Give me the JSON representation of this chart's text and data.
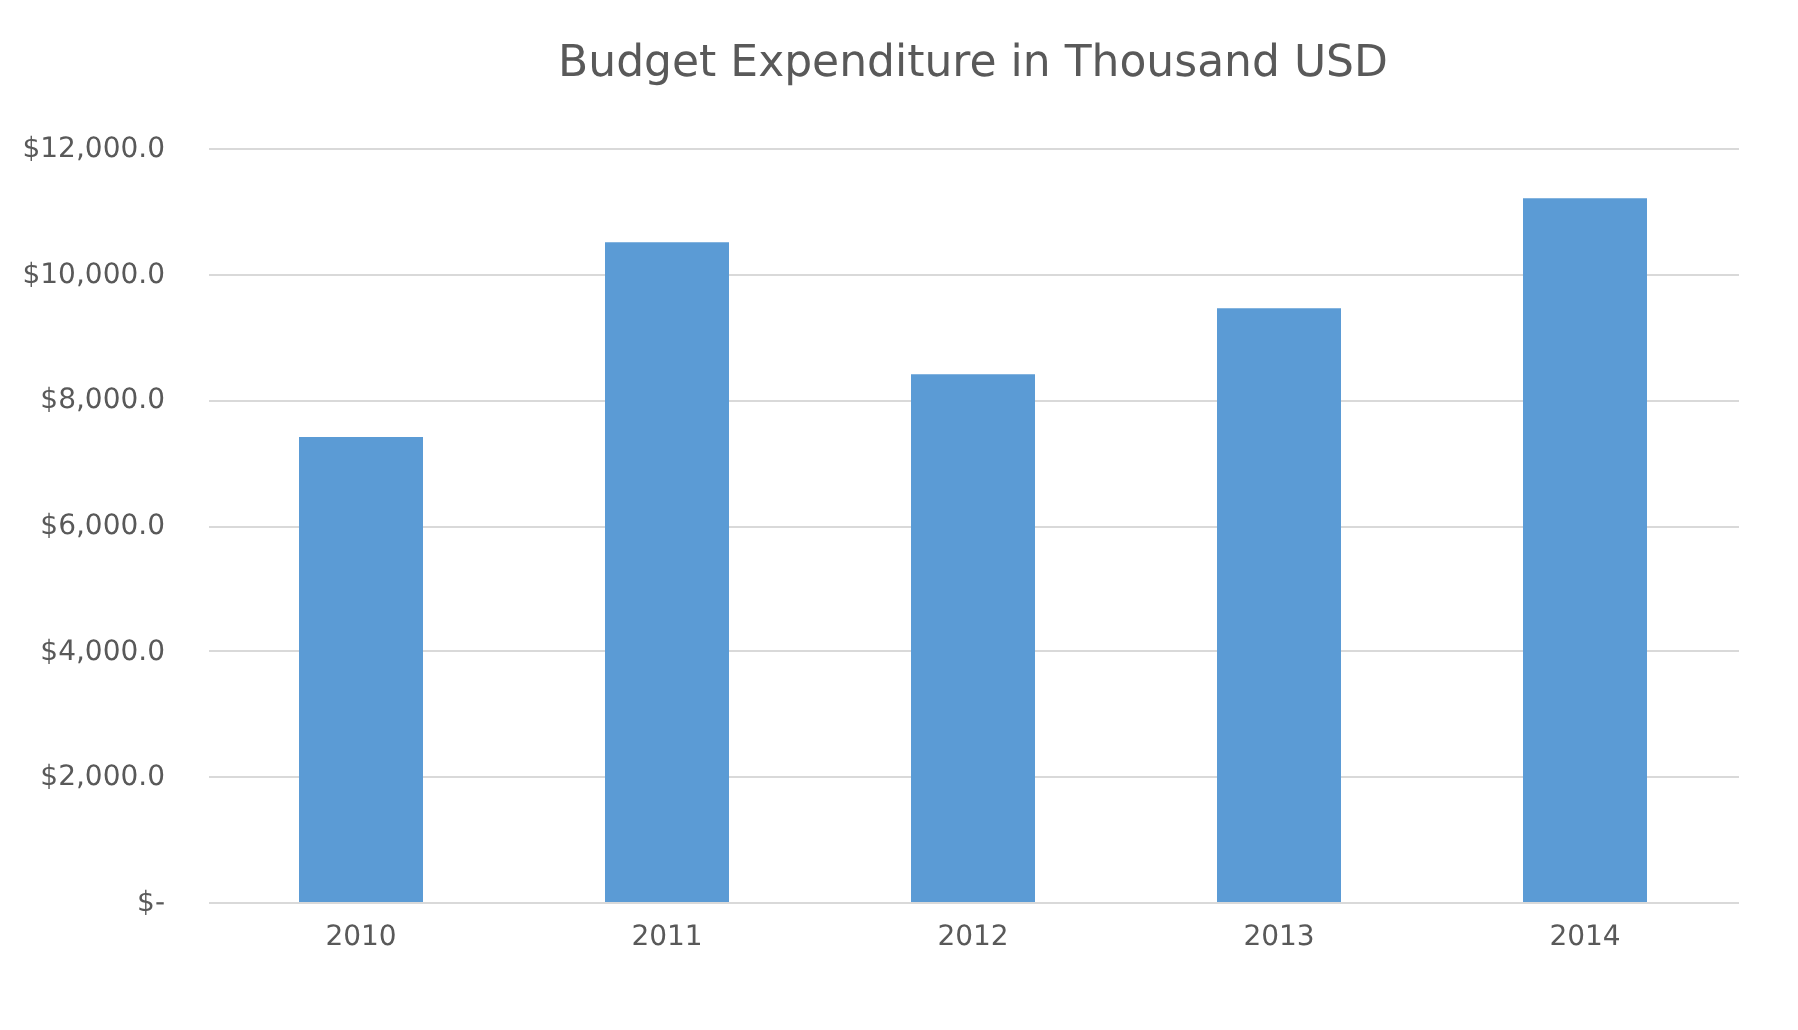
{
  "chart_data": {
    "type": "bar",
    "title": "Budget Expenditure in Thousand USD",
    "categories": [
      "2010",
      "2011",
      "2012",
      "2013",
      "2014"
    ],
    "values": [
      7400,
      10500,
      8400,
      9450,
      11200
    ],
    "color": "#5b9bd5",
    "ylim": [
      0,
      12000
    ],
    "yticks": [
      {
        "value": 0,
        "label": "$-"
      },
      {
        "value": 2000,
        "label": "$2,000.0"
      },
      {
        "value": 4000,
        "label": "$4,000.0"
      },
      {
        "value": 6000,
        "label": "$6,000.0"
      },
      {
        "value": 8000,
        "label": "$8,000.0"
      },
      {
        "value": 10000,
        "label": "$10,000.0"
      },
      {
        "value": 12000,
        "label": "$12,000.0"
      }
    ],
    "grid": "y"
  }
}
